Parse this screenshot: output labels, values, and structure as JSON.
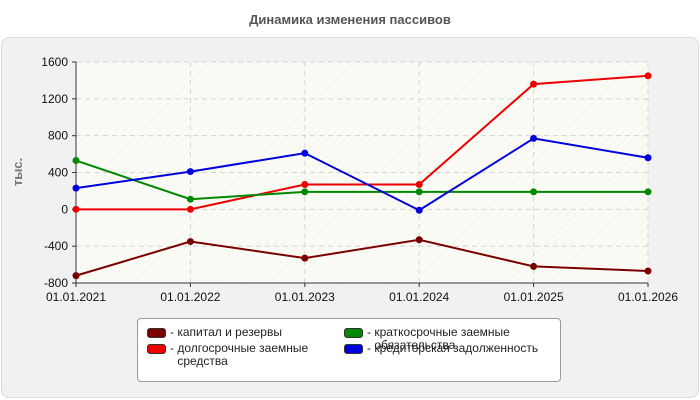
{
  "chart_data": {
    "type": "line",
    "title": "Динамика изменения пассивов",
    "ylabel": "тыс.",
    "xlabel": "",
    "categories": [
      "01.01.2021",
      "01.01.2022",
      "01.01.2023",
      "01.01.2024",
      "01.01.2025",
      "01.01.2026"
    ],
    "ylim": [
      -800,
      1600
    ],
    "yticks": [
      "1600",
      "1200",
      "800",
      "400",
      "0",
      "-400",
      "-800"
    ],
    "grid": true,
    "legend_position": "bottom",
    "series": [
      {
        "name": "капитал и резервы",
        "color": "#7a0000",
        "values": [
          -720,
          -350,
          -530,
          -330,
          -620,
          -670
        ]
      },
      {
        "name": "долгосрочные заемные\nсредства",
        "color": "#ee0000",
        "values": [
          0,
          0,
          270,
          270,
          1360,
          1450
        ]
      },
      {
        "name": "краткосрочные заемные\nобязательства",
        "color": "#008800",
        "values": [
          530,
          110,
          190,
          190,
          190,
          190
        ]
      },
      {
        "name": "кредиторская задолженность",
        "color": "#0000dd",
        "values": [
          230,
          410,
          610,
          -10,
          770,
          560
        ]
      }
    ]
  }
}
